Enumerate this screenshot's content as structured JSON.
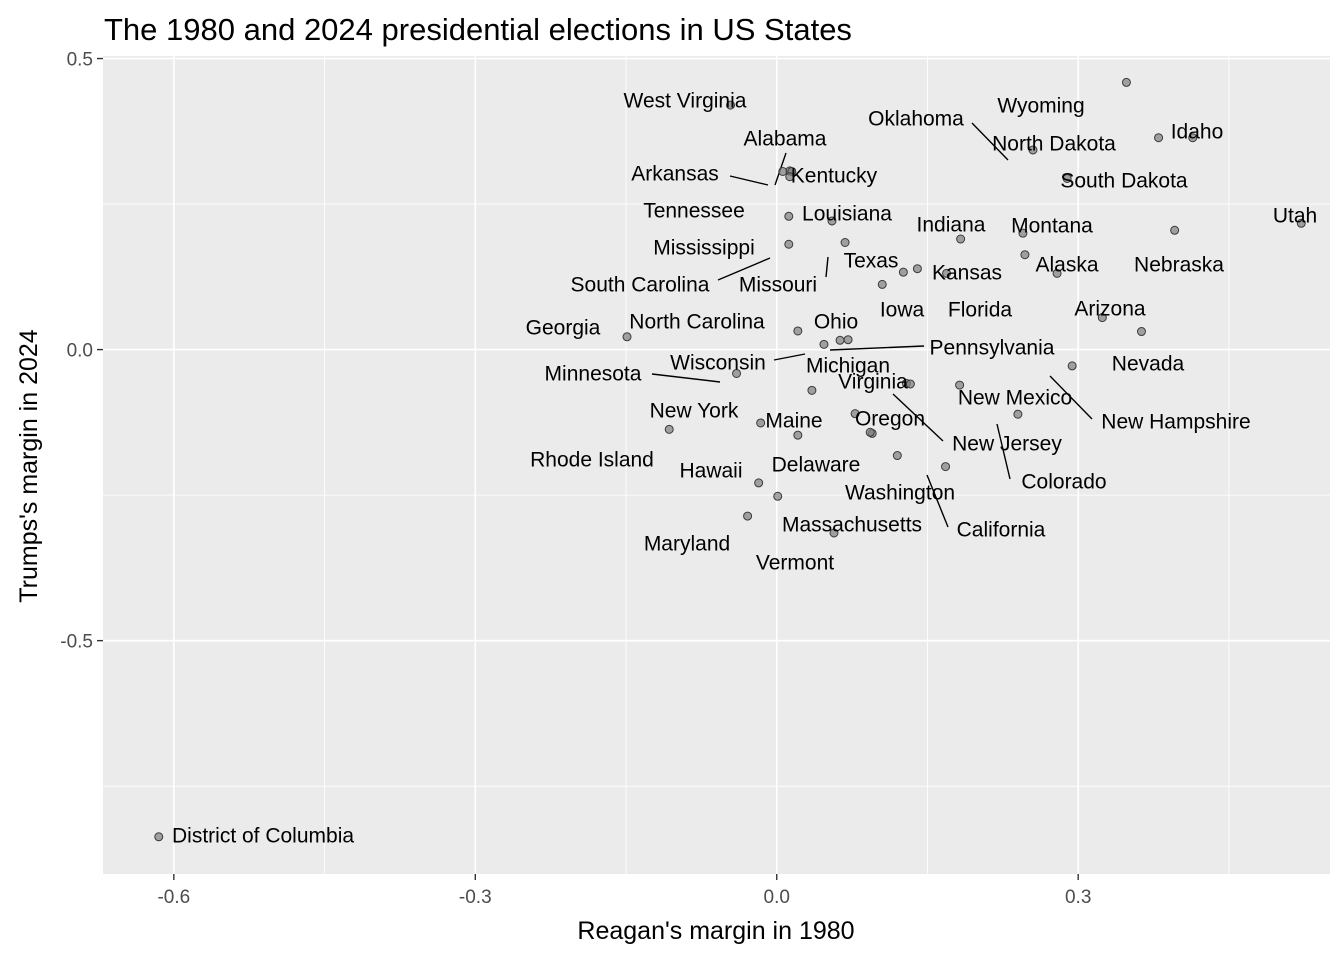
{
  "chart_data": {
    "type": "scatter",
    "title": "The 1980 and 2024 presidential elections in US States",
    "xlabel": "Reagan's margin in 1980",
    "ylabel": "Trumps's margin in 2024",
    "xlim": [
      -0.6705,
      0.5506
    ],
    "ylim": [
      -0.9009,
      0.5044
    ],
    "xticks": [
      -0.6,
      -0.3,
      0.0,
      0.3
    ],
    "xtick_labels": [
      "-0.6",
      "-0.3",
      "0.0",
      "0.3"
    ],
    "yticks": [
      -0.5,
      0.0,
      0.5
    ],
    "ytick_labels": [
      "-0.5",
      "0.0",
      "0.5"
    ],
    "grid": true,
    "legend": "none",
    "colors": {
      "panel": "#ebebeb",
      "grid": "#ffffff",
      "point_fill": "#7f7f7f",
      "point_stroke": "#3a3a3a"
    },
    "points": [
      {
        "label": "West Virginia",
        "x": -0.046,
        "y": 0.42
      },
      {
        "label": "Wyoming",
        "x": 0.348,
        "y": 0.459
      },
      {
        "label": "Oklahoma",
        "x": 0.255,
        "y": 0.343
      },
      {
        "label": "North Dakota",
        "x": 0.38,
        "y": 0.364
      },
      {
        "label": "Idaho",
        "x": 0.414,
        "y": 0.364
      },
      {
        "label": "Alabama",
        "x": 0.013,
        "y": 0.307
      },
      {
        "label": "Kentucky",
        "x": 0.015,
        "y": 0.306
      },
      {
        "label": "Arkansas",
        "x": 0.006,
        "y": 0.306
      },
      {
        "label": "South Dakota",
        "x": 0.289,
        "y": 0.294
      },
      {
        "label": "Tennessee",
        "x": 0.013,
        "y": 0.297
      },
      {
        "label": "Louisiana",
        "x": 0.055,
        "y": 0.221
      },
      {
        "label": "Utah",
        "x": 0.522,
        "y": 0.217
      },
      {
        "label": "Indiana",
        "x": 0.183,
        "y": 0.19
      },
      {
        "label": "Montana",
        "x": 0.245,
        "y": 0.2
      },
      {
        "label": "Nebraska",
        "x": 0.396,
        "y": 0.205
      },
      {
        "label": "Mississippi",
        "x": 0.012,
        "y": 0.181
      },
      {
        "label": "Missouri",
        "x": 0.068,
        "y": 0.184
      },
      {
        "label": "Texas",
        "x": 0.14,
        "y": 0.139
      },
      {
        "label": "Kansas",
        "x": 0.247,
        "y": 0.163
      },
      {
        "label": "Alaska",
        "x": 0.279,
        "y": 0.131
      },
      {
        "label": "South Carolina",
        "x": 0.012,
        "y": 0.229
      },
      {
        "label": "Iowa",
        "x": 0.126,
        "y": 0.133
      },
      {
        "label": "Florida",
        "x": 0.169,
        "y": 0.131
      },
      {
        "label": "Georgia",
        "x": -0.149,
        "y": 0.022
      },
      {
        "label": "North Carolina",
        "x": 0.021,
        "y": 0.032
      },
      {
        "label": "Ohio",
        "x": 0.105,
        "y": 0.112
      },
      {
        "label": "Arizona",
        "x": 0.324,
        "y": 0.055
      },
      {
        "label": "Nevada",
        "x": 0.363,
        "y": 0.031
      },
      {
        "label": "Pennsylvania",
        "x": 0.071,
        "y": 0.017
      },
      {
        "label": "Wisconsin",
        "x": 0.047,
        "y": 0.009
      },
      {
        "label": "Michigan",
        "x": 0.063,
        "y": 0.016
      },
      {
        "label": "Minnesota",
        "x": -0.04,
        "y": -0.041
      },
      {
        "label": "Virginia",
        "x": 0.129,
        "y": -0.058
      },
      {
        "label": "New Hampshire",
        "x": 0.294,
        "y": -0.028
      },
      {
        "label": "New Mexico",
        "x": 0.182,
        "y": -0.061
      },
      {
        "label": "New York",
        "x": -0.016,
        "y": -0.126
      },
      {
        "label": "Maine",
        "x": 0.035,
        "y": -0.07
      },
      {
        "label": "Oregon",
        "x": 0.095,
        "y": -0.144
      },
      {
        "label": "New Jersey",
        "x": 0.133,
        "y": -0.059
      },
      {
        "label": "Colorado",
        "x": 0.24,
        "y": -0.111
      },
      {
        "label": "Rhode Island",
        "x": -0.107,
        "y": -0.137
      },
      {
        "label": "Delaware",
        "x": 0.021,
        "y": -0.147
      },
      {
        "label": "Hawaii",
        "x": -0.018,
        "y": -0.229
      },
      {
        "label": "Washington",
        "x": 0.12,
        "y": -0.182
      },
      {
        "label": "California",
        "x": 0.168,
        "y": -0.201
      },
      {
        "label": "Massachusetts",
        "x": 0.001,
        "y": -0.252
      },
      {
        "label": "Maryland",
        "x": -0.029,
        "y": -0.286
      },
      {
        "label": "Vermont",
        "x": 0.057,
        "y": -0.315
      },
      {
        "label": "District of Columbia",
        "x": -0.615,
        "y": -0.837
      },
      {
        "label": "",
        "x": 0.078,
        "y": -0.11
      },
      {
        "label": "",
        "x": 0.093,
        "y": -0.142
      }
    ]
  }
}
